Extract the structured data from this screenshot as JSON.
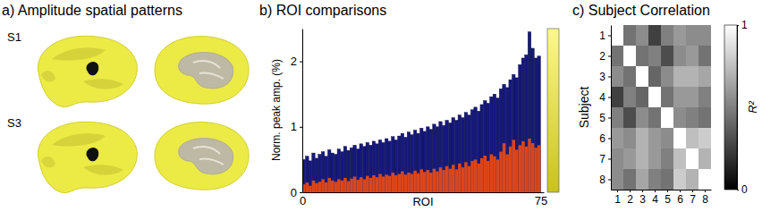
{
  "chart_data": [
    {
      "type": "surface",
      "title": "a) Amplitude spatial patterns",
      "categories": [
        "S1",
        "S3"
      ]
    },
    {
      "type": "bar",
      "title": "b) ROI comparisons",
      "xlabel": "ROI",
      "ylabel": "Norm. peak amp. (%)",
      "x": [
        1,
        2,
        3,
        4,
        5,
        6,
        7,
        8,
        9,
        10,
        11,
        12,
        13,
        14,
        15,
        16,
        17,
        18,
        19,
        20,
        21,
        22,
        23,
        24,
        25,
        26,
        27,
        28,
        29,
        30,
        31,
        32,
        33,
        34,
        35,
        36,
        37,
        38,
        39,
        40,
        41,
        42,
        43,
        44,
        45,
        46,
        47,
        48,
        49,
        50,
        51,
        52,
        53,
        54,
        55,
        56,
        57,
        58,
        59,
        60,
        61,
        62,
        63,
        64,
        65,
        66,
        67,
        68,
        69,
        70,
        71,
        72,
        73,
        74,
        75
      ],
      "xlim": [
        0,
        76
      ],
      "xticks": [
        0,
        75
      ],
      "ylim": [
        0,
        2.5
      ],
      "yticks": [
        0,
        1,
        2
      ],
      "stacked": false,
      "series": [
        {
          "color": "#16197a",
          "values": [
            0.5,
            0.55,
            0.48,
            0.6,
            0.52,
            0.58,
            0.62,
            0.55,
            0.65,
            0.6,
            0.58,
            0.66,
            0.62,
            0.7,
            0.64,
            0.68,
            0.72,
            0.66,
            0.74,
            0.7,
            0.76,
            0.72,
            0.78,
            0.74,
            0.8,
            0.76,
            0.82,
            0.78,
            0.85,
            0.8,
            0.86,
            0.9,
            0.84,
            0.92,
            0.88,
            0.95,
            0.9,
            0.98,
            0.93,
            1.0,
            0.96,
            1.04,
            1.0,
            1.08,
            1.02,
            1.1,
            1.06,
            1.14,
            1.1,
            1.18,
            1.14,
            1.22,
            1.18,
            1.26,
            1.3,
            1.24,
            1.34,
            1.4,
            1.36,
            1.46,
            1.5,
            1.44,
            1.58,
            1.65,
            1.6,
            1.72,
            1.8,
            1.75,
            1.95,
            2.05,
            2.1,
            2.45,
            2.2,
            2.05,
            2.08
          ]
        },
        {
          "color": "#d9461c",
          "values": [
            0.12,
            0.15,
            0.1,
            0.18,
            0.14,
            0.16,
            0.2,
            0.15,
            0.22,
            0.18,
            0.16,
            0.2,
            0.18,
            0.22,
            0.17,
            0.21,
            0.24,
            0.19,
            0.23,
            0.2,
            0.25,
            0.22,
            0.26,
            0.23,
            0.28,
            0.24,
            0.27,
            0.25,
            0.3,
            0.26,
            0.28,
            0.32,
            0.27,
            0.3,
            0.28,
            0.33,
            0.29,
            0.35,
            0.31,
            0.34,
            0.3,
            0.36,
            0.32,
            0.38,
            0.34,
            0.4,
            0.36,
            0.42,
            0.35,
            0.44,
            0.38,
            0.46,
            0.4,
            0.48,
            0.5,
            0.44,
            0.52,
            0.56,
            0.48,
            0.58,
            0.55,
            0.5,
            0.62,
            0.75,
            0.58,
            0.7,
            0.8,
            0.65,
            0.72,
            0.78,
            0.7,
            0.82,
            0.75,
            0.68,
            0.72
          ]
        }
      ]
    },
    {
      "type": "heatmap",
      "title": "c) Subject Correlation",
      "ylabel": "Subject",
      "x": [
        1,
        2,
        3,
        4,
        5,
        6,
        7,
        8
      ],
      "y": [
        1,
        2,
        3,
        4,
        5,
        6,
        7,
        8
      ],
      "xlim": [
        0.5,
        8.5
      ],
      "xticks": [
        1,
        2,
        3,
        4,
        5,
        6,
        7,
        8
      ],
      "ylim": [
        8.5,
        0.5
      ],
      "yticks": [
        1,
        2,
        3,
        4,
        5,
        6,
        7,
        8
      ],
      "cells": [
        [
          1,
          0.45,
          0.55,
          0.25,
          0.5,
          0.6,
          0.55,
          0.55
        ],
        [
          0.45,
          1,
          0.45,
          0.5,
          0.3,
          0.55,
          0.6,
          0.45
        ],
        [
          0.55,
          0.45,
          1,
          0.4,
          0.55,
          0.7,
          0.7,
          0.65
        ],
        [
          0.25,
          0.5,
          0.4,
          1,
          0.45,
          0.6,
          0.6,
          0.5
        ],
        [
          0.5,
          0.3,
          0.55,
          0.45,
          1,
          0.55,
          0.5,
          0.45
        ],
        [
          0.6,
          0.55,
          0.7,
          0.6,
          0.55,
          1,
          0.75,
          0.8
        ],
        [
          0.55,
          0.6,
          0.7,
          0.6,
          0.5,
          0.75,
          1,
          0.7
        ],
        [
          0.55,
          0.45,
          0.65,
          0.5,
          0.45,
          0.8,
          0.7,
          1
        ]
      ],
      "colorbar": {
        "label": "R²",
        "range": [
          0,
          1
        ],
        "ticks": [
          0,
          1
        ]
      }
    }
  ]
}
